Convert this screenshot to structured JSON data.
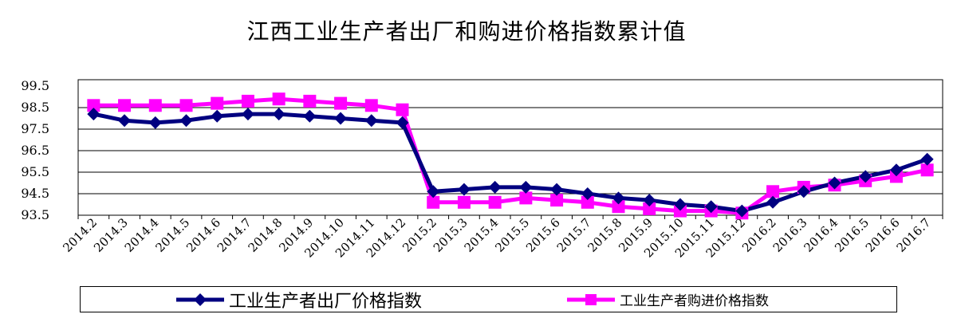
{
  "chart_data": {
    "type": "line",
    "title": "江西工业生产者出厂和购进价格指数累计值",
    "xlabel": "",
    "ylabel": "",
    "categories": [
      "2014.2",
      "2014.3",
      "2014.4",
      "2014.5",
      "2014.6",
      "2014.7",
      "2014.8",
      "2014.9",
      "2014.10",
      "2014.11",
      "2014.12",
      "2015.2",
      "2015.3",
      "2015.4",
      "2015.5",
      "2015.6",
      "2015.7",
      "2015.8",
      "2015.9",
      "2015.10",
      "2015.11",
      "2015.12",
      "2016.2",
      "2016.3",
      "2016.4",
      "2016.5",
      "2016.6",
      "2016.7"
    ],
    "y_ticks": [
      "99.5",
      "98.5",
      "97.5",
      "96.5",
      "95.5",
      "94.5",
      "93.5"
    ],
    "ylim": [
      93.5,
      99.5
    ],
    "grid": true,
    "legend_position": "bottom",
    "series": [
      {
        "name": "工业生产者出厂价格指数",
        "color": "#000080",
        "marker": "diamond",
        "values": [
          98.2,
          97.9,
          97.8,
          97.9,
          98.1,
          98.2,
          98.2,
          98.1,
          98.0,
          97.9,
          97.8,
          94.6,
          94.7,
          94.8,
          94.8,
          94.7,
          94.5,
          94.3,
          94.2,
          94.0,
          93.9,
          93.7,
          94.1,
          94.6,
          95.0,
          95.3,
          95.6,
          96.1
        ]
      },
      {
        "name": "工业生产者购进价格指数",
        "color": "#FF00FF",
        "marker": "square",
        "values": [
          98.6,
          98.6,
          98.6,
          98.6,
          98.7,
          98.8,
          98.9,
          98.8,
          98.7,
          98.6,
          98.4,
          94.1,
          94.1,
          94.1,
          94.3,
          94.2,
          94.1,
          93.9,
          93.8,
          93.7,
          93.7,
          93.6,
          94.6,
          94.8,
          94.9,
          95.1,
          95.3,
          95.6
        ]
      }
    ]
  }
}
